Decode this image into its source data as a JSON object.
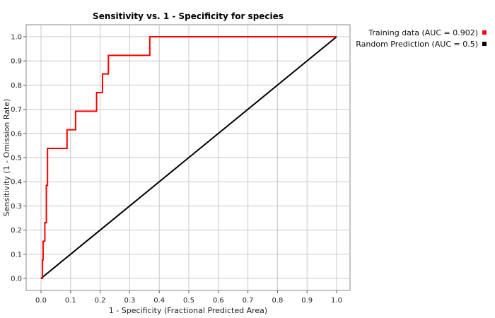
{
  "chart_data": {
    "type": "line",
    "title": "Sensitivity vs. 1 - Specificity for species",
    "xlabel": "1 - Specificity  (Fractional Predicted Area)",
    "ylabel": "Sensitivity  (1 - Omission Rate)",
    "xlim": [
      0,
      1
    ],
    "ylim": [
      0,
      1
    ],
    "x_ticks": [
      "0.0",
      "0.1",
      "0.2",
      "0.3",
      "0.4",
      "0.5",
      "0.6",
      "0.7",
      "0.8",
      "0.9",
      "1.0"
    ],
    "y_ticks": [
      "0.0",
      "0.1",
      "0.2",
      "0.3",
      "0.4",
      "0.5",
      "0.6",
      "0.7",
      "0.8",
      "0.9",
      "1.0"
    ],
    "grid": true,
    "legend_position": "top-right",
    "series": [
      {
        "name": "Training data (AUC = 0.902)",
        "color": "#ff0000",
        "points": [
          [
            0.0,
            0.0
          ],
          [
            0.005,
            0.0
          ],
          [
            0.005,
            0.077
          ],
          [
            0.007,
            0.077
          ],
          [
            0.007,
            0.154
          ],
          [
            0.013,
            0.154
          ],
          [
            0.013,
            0.231
          ],
          [
            0.018,
            0.231
          ],
          [
            0.018,
            0.385
          ],
          [
            0.022,
            0.385
          ],
          [
            0.022,
            0.538
          ],
          [
            0.088,
            0.538
          ],
          [
            0.088,
            0.615
          ],
          [
            0.117,
            0.615
          ],
          [
            0.117,
            0.692
          ],
          [
            0.188,
            0.692
          ],
          [
            0.188,
            0.769
          ],
          [
            0.208,
            0.769
          ],
          [
            0.208,
            0.846
          ],
          [
            0.228,
            0.846
          ],
          [
            0.228,
            0.923
          ],
          [
            0.368,
            0.923
          ],
          [
            0.368,
            1.0
          ],
          [
            1.0,
            1.0
          ]
        ]
      },
      {
        "name": "Random Prediction (AUC = 0.5)",
        "color": "#000000",
        "points": [
          [
            0.0,
            0.0
          ],
          [
            1.0,
            1.0
          ]
        ]
      }
    ]
  }
}
